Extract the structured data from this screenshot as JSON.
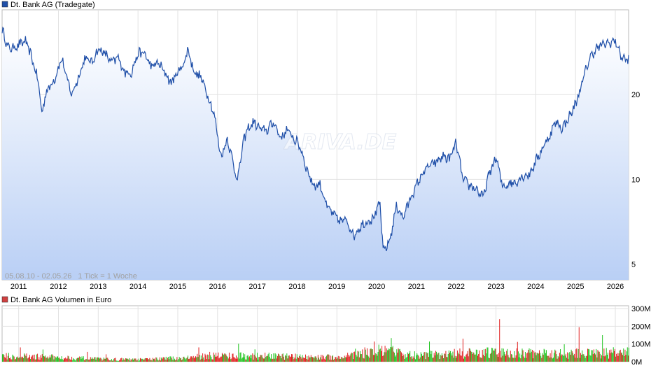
{
  "chart_data": [
    {
      "type": "area",
      "legend": "Dt. Bank AG (Tradegate)",
      "legend_position": "top-left",
      "date_range": "05.08.10 - 02.05.26",
      "tick_note": "1 Tick = 1 Woche",
      "watermark": "ARIVA.DE",
      "y_scale": "log",
      "ylim": [
        4.4,
        40
      ],
      "y_ticks": [
        5,
        10,
        20
      ],
      "grid": true,
      "x_tick_labels": [
        "2011",
        "2012",
        "2013",
        "2014",
        "2015",
        "2016",
        "2017",
        "2018",
        "2019",
        "2020",
        "2021",
        "2022",
        "2023",
        "2024",
        "2025",
        "2026"
      ],
      "line_color": "#1f4fa8",
      "fill_color": "#b9cff5",
      "x": [
        "2010-08",
        "2010-10",
        "2011-01",
        "2011-03",
        "2011-05",
        "2011-07",
        "2011-08",
        "2011-09",
        "2011-10",
        "2011-12",
        "2012-02",
        "2012-03",
        "2012-05",
        "2012-07",
        "2012-09",
        "2012-11",
        "2013-01",
        "2013-03",
        "2013-05",
        "2013-07",
        "2013-09",
        "2013-11",
        "2014-01",
        "2014-03",
        "2014-05",
        "2014-07",
        "2014-09",
        "2014-11",
        "2015-01",
        "2015-03",
        "2015-04",
        "2015-06",
        "2015-08",
        "2015-10",
        "2015-12",
        "2016-02",
        "2016-04",
        "2016-06",
        "2016-07",
        "2016-09",
        "2016-10",
        "2016-12",
        "2017-02",
        "2017-04",
        "2017-06",
        "2017-08",
        "2017-10",
        "2017-12",
        "2018-02",
        "2018-04",
        "2018-06",
        "2018-08",
        "2018-10",
        "2018-12",
        "2019-02",
        "2019-04",
        "2019-06",
        "2019-08",
        "2019-10",
        "2019-12",
        "2020-02",
        "2020-03",
        "2020-05",
        "2020-07",
        "2020-09",
        "2020-11",
        "2021-01",
        "2021-03",
        "2021-05",
        "2021-07",
        "2021-09",
        "2021-11",
        "2022-01",
        "2022-03",
        "2022-05",
        "2022-07",
        "2022-09",
        "2022-11",
        "2023-01",
        "2023-03",
        "2023-05",
        "2023-07",
        "2023-09",
        "2023-11",
        "2024-01",
        "2024-03",
        "2024-05",
        "2024-07",
        "2024-09",
        "2024-11",
        "2025-01",
        "2025-03",
        "2025-05",
        "2025-07",
        "2025-09",
        "2025-11",
        "2026-01",
        "2026-03",
        "2026-05"
      ],
      "y": [
        34,
        29,
        30,
        31,
        27,
        22,
        17,
        20,
        21,
        23,
        27,
        24,
        20,
        23,
        27,
        26,
        29,
        28,
        26,
        27,
        24,
        24,
        28,
        28,
        25,
        26,
        24,
        22,
        24,
        26,
        29,
        24,
        23,
        20,
        17,
        12,
        14,
        11,
        10,
        14,
        15,
        16,
        15,
        15,
        16,
        14,
        15,
        14,
        13,
        10.8,
        9.5,
        9.6,
        8,
        7.5,
        7.1,
        7.2,
        6.3,
        6.8,
        7.1,
        7.3,
        8.2,
        5.5,
        6.1,
        8.1,
        7.3,
        8.5,
        9.5,
        10.6,
        11.2,
        11.5,
        12.1,
        11.8,
        13.5,
        10,
        9.5,
        9.3,
        8.6,
        10.5,
        12,
        9.4,
        9.7,
        9.8,
        10.3,
        10.4,
        11.6,
        12.9,
        14.2,
        16,
        15.2,
        16.6,
        18.5,
        22,
        26.5,
        29,
        30,
        30.5,
        31,
        27,
        26.5
      ]
    },
    {
      "type": "bar",
      "legend": "Dt. Bank AG Volumen in Euro",
      "legend_position": "top-left",
      "ylim": [
        0,
        300
      ],
      "y_unit": "M",
      "y_ticks": [
        0,
        100,
        200,
        300
      ],
      "y_tick_labels": [
        "0M",
        "100M",
        "200M",
        "300M"
      ],
      "grid": true,
      "up_color": "#22c422",
      "down_color": "#e02020",
      "x": [
        "2011",
        "2012",
        "2013",
        "2014",
        "2015",
        "2016",
        "2017",
        "2018",
        "2019",
        "2020",
        "2021",
        "2022",
        "2023",
        "2024",
        "2025",
        "2026"
      ],
      "values": [
        30,
        25,
        15,
        12,
        20,
        35,
        32,
        28,
        25,
        60,
        35,
        45,
        50,
        45,
        45,
        50
      ],
      "peaks": [
        {
          "x": "2023-02",
          "value": 240
        },
        {
          "x": "2025-02",
          "value": 195
        },
        {
          "x": "2025-09",
          "value": 150
        },
        {
          "x": "2022-03",
          "value": 130
        }
      ]
    }
  ]
}
